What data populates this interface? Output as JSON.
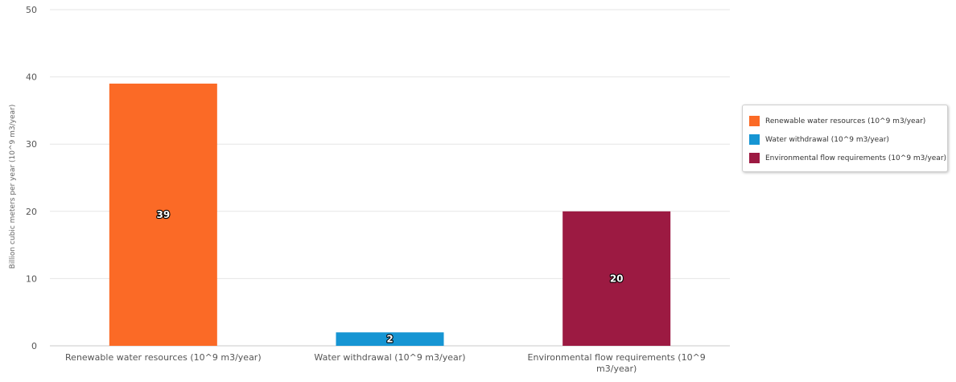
{
  "chart_data": {
    "type": "bar",
    "categories": [
      "Renewable water resources (10^9 m3/year)",
      "Water withdrawal (10^9 m3/year)",
      "Environmental flow requirements (10^9 m3/year)"
    ],
    "category_label_lines": [
      [
        "Renewable water resources (10^9 m3/year)"
      ],
      [
        "Water withdrawal (10^9 m3/year)"
      ],
      [
        "Environmental flow requirements (10^9",
        "m3/year)"
      ]
    ],
    "series": [
      {
        "name": "Renewable water resources (10^9 m3/year)",
        "category": 0,
        "value": 39,
        "label": "39",
        "color": "#fb6a26"
      },
      {
        "name": "Water withdrawal (10^9 m3/year)",
        "category": 1,
        "value": 2,
        "label": "2",
        "color": "#1695d3"
      },
      {
        "name": "Environmental flow requirements (10^9 m3/year)",
        "category": 2,
        "value": 20,
        "label": "20",
        "color": "#9c1a42"
      }
    ],
    "title": "",
    "xlabel": "",
    "ylabel": "Billion cubic meters per year (10^9 m3/year)",
    "ylim": [
      0,
      50
    ],
    "yticks": [
      0,
      10,
      20,
      30,
      40,
      50
    ],
    "grid": true,
    "legend_position": "right"
  }
}
